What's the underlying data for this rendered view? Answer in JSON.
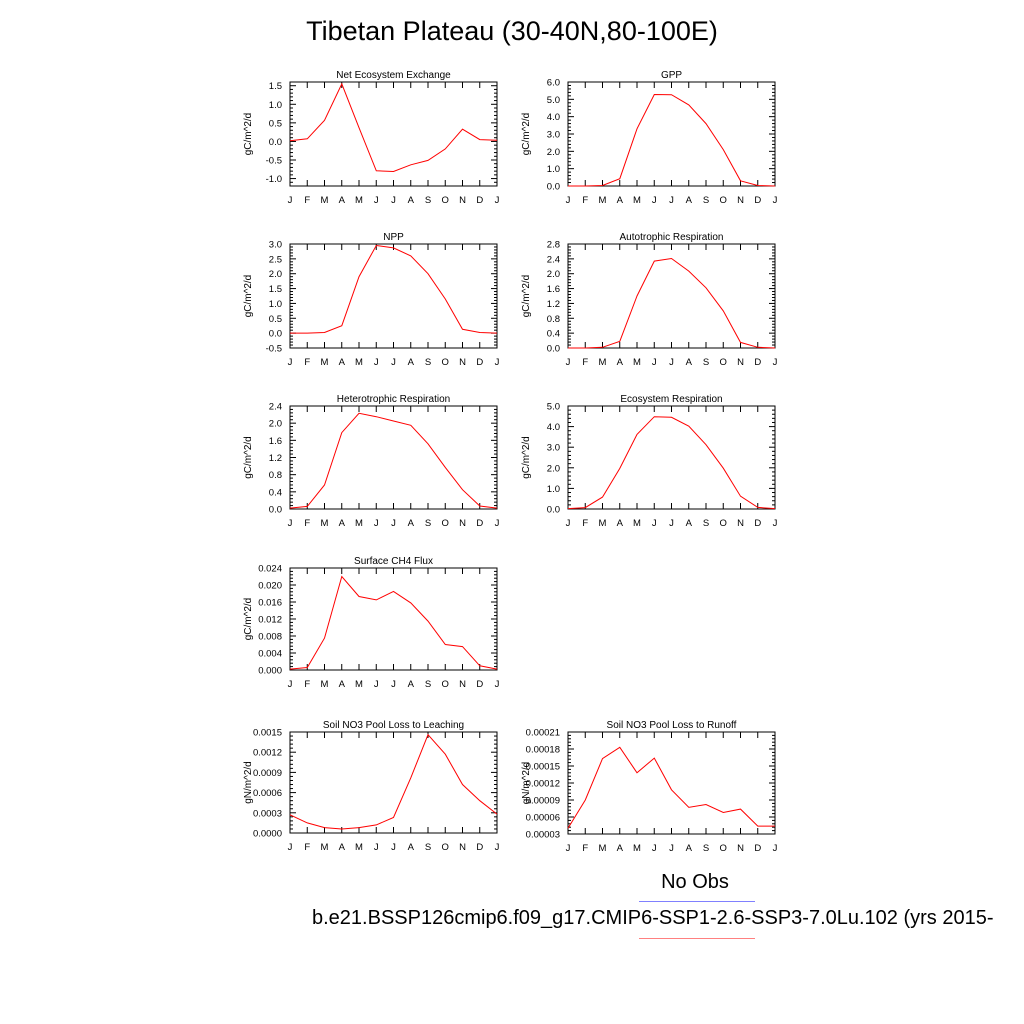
{
  "title": "Tibetan Plateau (30-40N,80-100E)",
  "legend": {
    "obs_label": "No Obs",
    "case_name": "b.e21.BSSP126cmip6.f09_g17.CMIP6-SSP1-2.6-SSP3-7.0Lu.102 (yrs 2015-",
    "obs_color": "#8080ff",
    "model_color": "#ff8080"
  },
  "colors": {
    "series": "#ff0000",
    "axis": "#000000"
  },
  "month_labels": [
    "J",
    "F",
    "M",
    "A",
    "M",
    "J",
    "J",
    "A",
    "S",
    "O",
    "N",
    "D",
    "J"
  ],
  "chart_data": [
    {
      "type": "line",
      "title": "Net Ecosystem Exchange",
      "ylabel": "gC/m^2/d",
      "ylim": [
        -1.2,
        1.6
      ],
      "yticks": [
        -1.0,
        -0.5,
        0.0,
        0.5,
        1.0,
        1.5
      ],
      "ytick_labels": [
        "-1.0",
        "-0.5",
        "0.0",
        "0.5",
        "1.0",
        "1.5"
      ],
      "values": [
        0.02,
        0.07,
        0.57,
        1.55,
        0.37,
        -0.79,
        -0.81,
        -0.63,
        -0.51,
        -0.2,
        0.33,
        0.05,
        0.03
      ]
    },
    {
      "type": "line",
      "title": "GPP",
      "ylabel": "gC/m^2/d",
      "ylim": [
        0.0,
        6.0
      ],
      "yticks": [
        0.0,
        1.0,
        2.0,
        3.0,
        4.0,
        5.0,
        6.0
      ],
      "ytick_labels": [
        "0.0",
        "1.0",
        "2.0",
        "3.0",
        "4.0",
        "5.0",
        "6.0"
      ],
      "values": [
        0.0,
        0.0,
        0.03,
        0.42,
        3.3,
        5.28,
        5.27,
        4.68,
        3.6,
        2.1,
        0.3,
        0.03,
        0.0
      ]
    },
    {
      "type": "line",
      "title": "NPP",
      "ylabel": "gC/m^2/d",
      "ylim": [
        -0.5,
        3.0
      ],
      "yticks": [
        -0.5,
        0.0,
        0.5,
        1.0,
        1.5,
        2.0,
        2.5,
        3.0
      ],
      "ytick_labels": [
        "-0.5",
        "0.0",
        "0.5",
        "1.0",
        "1.5",
        "2.0",
        "2.5",
        "3.0"
      ],
      "values": [
        0.0,
        0.0,
        0.02,
        0.25,
        1.9,
        2.95,
        2.87,
        2.6,
        2.0,
        1.15,
        0.13,
        0.02,
        0.0
      ]
    },
    {
      "type": "line",
      "title": "Autotrophic Respiration",
      "ylabel": "gC/m^2/d",
      "ylim": [
        0.0,
        2.8
      ],
      "yticks": [
        0.0,
        0.4,
        0.8,
        1.2,
        1.6,
        2.0,
        2.4,
        2.8
      ],
      "ytick_labels": [
        "0.0",
        "0.4",
        "0.8",
        "1.2",
        "1.6",
        "2.0",
        "2.4",
        "2.8"
      ],
      "values": [
        0.0,
        0.0,
        0.02,
        0.18,
        1.4,
        2.34,
        2.41,
        2.07,
        1.62,
        1.0,
        0.15,
        0.02,
        0.0
      ]
    },
    {
      "type": "line",
      "title": "Heterotrophic Respiration",
      "ylabel": "gC/m^2/d",
      "ylim": [
        0.0,
        2.4
      ],
      "yticks": [
        0.0,
        0.4,
        0.8,
        1.2,
        1.6,
        2.0,
        2.4
      ],
      "ytick_labels": [
        "0.0",
        "0.4",
        "0.8",
        "1.2",
        "1.6",
        "2.0",
        "2.4"
      ],
      "values": [
        0.02,
        0.06,
        0.56,
        1.78,
        2.23,
        2.15,
        2.05,
        1.95,
        1.52,
        0.97,
        0.45,
        0.07,
        0.02
      ]
    },
    {
      "type": "line",
      "title": "Ecosystem Respiration",
      "ylabel": "gC/m^2/d",
      "ylim": [
        0.0,
        5.0
      ],
      "yticks": [
        0.0,
        1.0,
        2.0,
        3.0,
        4.0,
        5.0
      ],
      "ytick_labels": [
        "0.0",
        "1.0",
        "2.0",
        "3.0",
        "4.0",
        "5.0"
      ],
      "values": [
        0.02,
        0.07,
        0.58,
        1.97,
        3.62,
        4.48,
        4.45,
        4.02,
        3.12,
        1.98,
        0.62,
        0.08,
        0.02
      ]
    },
    {
      "type": "line",
      "title": "Surface CH4 Flux",
      "ylabel": "gC/m^2/d",
      "ylim": [
        0.0,
        0.024
      ],
      "yticks": [
        0.0,
        0.004,
        0.008,
        0.012,
        0.016,
        0.02,
        0.024
      ],
      "ytick_labels": [
        "0.000",
        "0.004",
        "0.008",
        "0.012",
        "0.016",
        "0.020",
        "0.024"
      ],
      "values": [
        0.0002,
        0.0006,
        0.0075,
        0.022,
        0.0173,
        0.0165,
        0.0185,
        0.0158,
        0.0115,
        0.006,
        0.0055,
        0.001,
        0.0002
      ]
    },
    {
      "type": "line",
      "title": "Soil NO3 Pool Loss to Leaching",
      "ylabel": "gN/m^2/d",
      "ylim": [
        0.0,
        0.0015
      ],
      "yticks": [
        0.0,
        0.0003,
        0.0006,
        0.0009,
        0.0012,
        0.0015
      ],
      "ytick_labels": [
        "0.0000",
        "0.0003",
        "0.0006",
        "0.0009",
        "0.0012",
        "0.0015"
      ],
      "values": [
        0.00027,
        0.00015,
        8e-05,
        6e-05,
        8e-05,
        0.00012,
        0.00023,
        0.00082,
        0.00146,
        0.00117,
        0.00072,
        0.00048,
        0.00028
      ]
    },
    {
      "type": "line",
      "title": "Soil NO3 Pool Loss to Runoff",
      "ylabel": "gN/m^2/d",
      "ylim": [
        3e-05,
        0.00021
      ],
      "yticks": [
        3e-05,
        6e-05,
        9e-05,
        0.00012,
        0.00015,
        0.00018,
        0.00021
      ],
      "ytick_labels": [
        "0.00003",
        "0.00006",
        "0.00009",
        "0.00012",
        "0.00015",
        "0.00018",
        "0.00021"
      ],
      "values": [
        4e-05,
        9e-05,
        0.000163,
        0.000183,
        0.000138,
        0.000164,
        0.000108,
        7.7e-05,
        8.2e-05,
        6.8e-05,
        7.4e-05,
        4.4e-05,
        4.4e-05
      ]
    }
  ]
}
